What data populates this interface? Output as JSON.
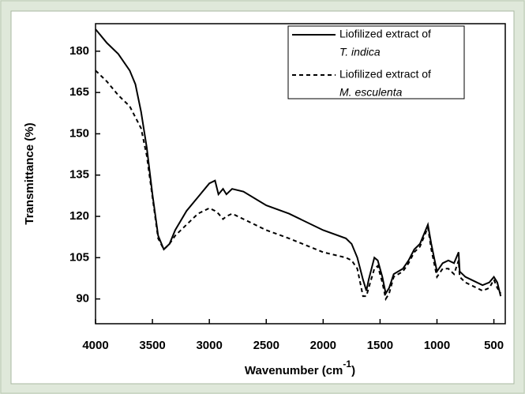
{
  "chart_data": {
    "type": "line",
    "x_label": "Wavenumber (cm",
    "x_label_sup": "-1",
    "x_label_end": ")",
    "y_label": "Transmittance (%)",
    "x": [
      4000,
      3900,
      3800,
      3700,
      3650,
      3600,
      3550,
      3500,
      3450,
      3400,
      3350,
      3300,
      3200,
      3100,
      3000,
      2950,
      2920,
      2880,
      2850,
      2800,
      2700,
      2500,
      2300,
      2000,
      1800,
      1750,
      1700,
      1650,
      1620,
      1600,
      1550,
      1520,
      1480,
      1450,
      1420,
      1380,
      1300,
      1250,
      1200,
      1150,
      1100,
      1080,
      1050,
      1000,
      950,
      900,
      850,
      810,
      800,
      750,
      700,
      600,
      540,
      500,
      470,
      440
    ],
    "series": [
      {
        "name": "Liofilized extract of",
        "name_line2": "T. indica",
        "color": "#000000",
        "dash": "solid",
        "values": [
          188,
          183,
          179,
          173,
          168,
          158,
          145,
          128,
          113,
          108,
          110,
          115,
          122,
          127,
          132,
          133,
          128,
          130,
          128,
          130,
          129,
          124,
          121,
          115,
          112,
          110,
          105,
          97,
          93,
          97,
          105,
          104,
          98,
          92,
          94,
          99,
          101,
          104,
          108,
          110,
          115,
          117,
          110,
          100,
          103,
          104,
          103,
          107,
          100,
          98,
          97,
          95,
          96,
          98,
          96,
          91
        ]
      },
      {
        "name": "Liofilized extract of",
        "name_line2": "M. esculenta",
        "color": "#000000",
        "dash": "dashed",
        "values": [
          173,
          169,
          164,
          160,
          156,
          152,
          142,
          127,
          112,
          108,
          110,
          113,
          117,
          121,
          123,
          122,
          121,
          119,
          120,
          121,
          119,
          115,
          112,
          107,
          105,
          104,
          101,
          91,
          91,
          94,
          101,
          102,
          96,
          90,
          92,
          98,
          100,
          103,
          107,
          109,
          114,
          116,
          108,
          98,
          101,
          101,
          99,
          104,
          98,
          96,
          95,
          93,
          94,
          97,
          94,
          92
        ]
      }
    ],
    "xlim": [
      4000,
      400
    ],
    "xticks": [
      4000,
      3500,
      3000,
      2500,
      2000,
      1500,
      1000,
      500
    ],
    "ylim": [
      81,
      190
    ],
    "yticks": [
      90,
      105,
      120,
      135,
      150,
      165,
      180
    ]
  }
}
